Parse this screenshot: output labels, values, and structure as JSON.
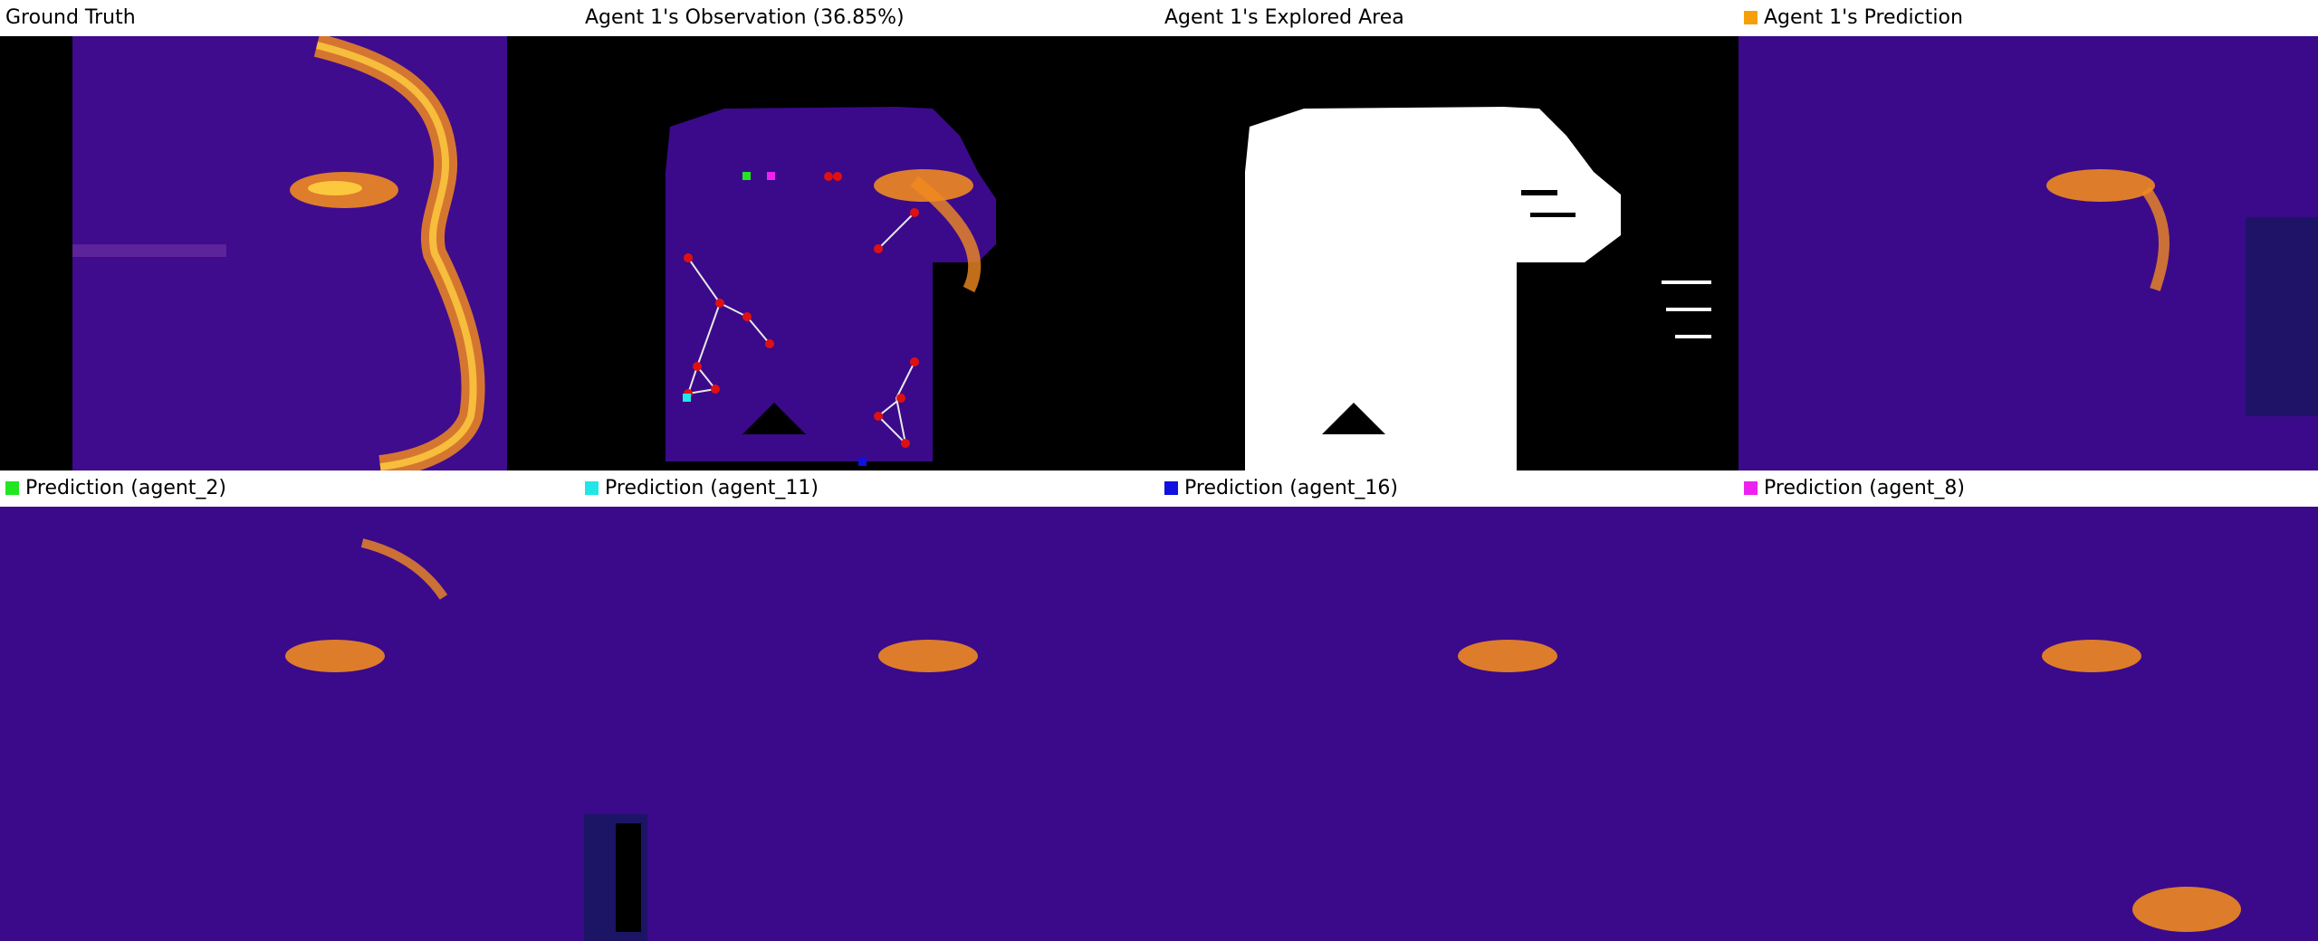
{
  "panels": [
    {
      "id": "ground_truth",
      "title": "Ground Truth"
    },
    {
      "id": "observation",
      "title": "Agent 1's Observation (36.85%)"
    },
    {
      "id": "explored",
      "title": "Agent 1's Explored Area"
    },
    {
      "id": "prediction",
      "title": "Agent 1's Prediction",
      "swatch": "#f5a00a"
    },
    {
      "id": "agent_2",
      "title": "Prediction (agent_2)",
      "swatch": "#22e622"
    },
    {
      "id": "agent_11",
      "title": "Prediction (agent_11)",
      "swatch": "#22e6e6"
    },
    {
      "id": "agent_16",
      "title": "Prediction (agent_16)",
      "swatch": "#1010e0"
    },
    {
      "id": "agent_8",
      "title": "Prediction (agent_8)",
      "swatch": "#ee22ee"
    }
  ],
  "colors": {
    "background_purple": "#3a0a8a",
    "hot_orange": "#f08a20",
    "hot_yellow": "#ffd040",
    "explored_white": "#ffffff",
    "unexplored_black": "#000000",
    "agent_marker_red": "#e01010",
    "trajectory_line": "#e8e8e8"
  }
}
